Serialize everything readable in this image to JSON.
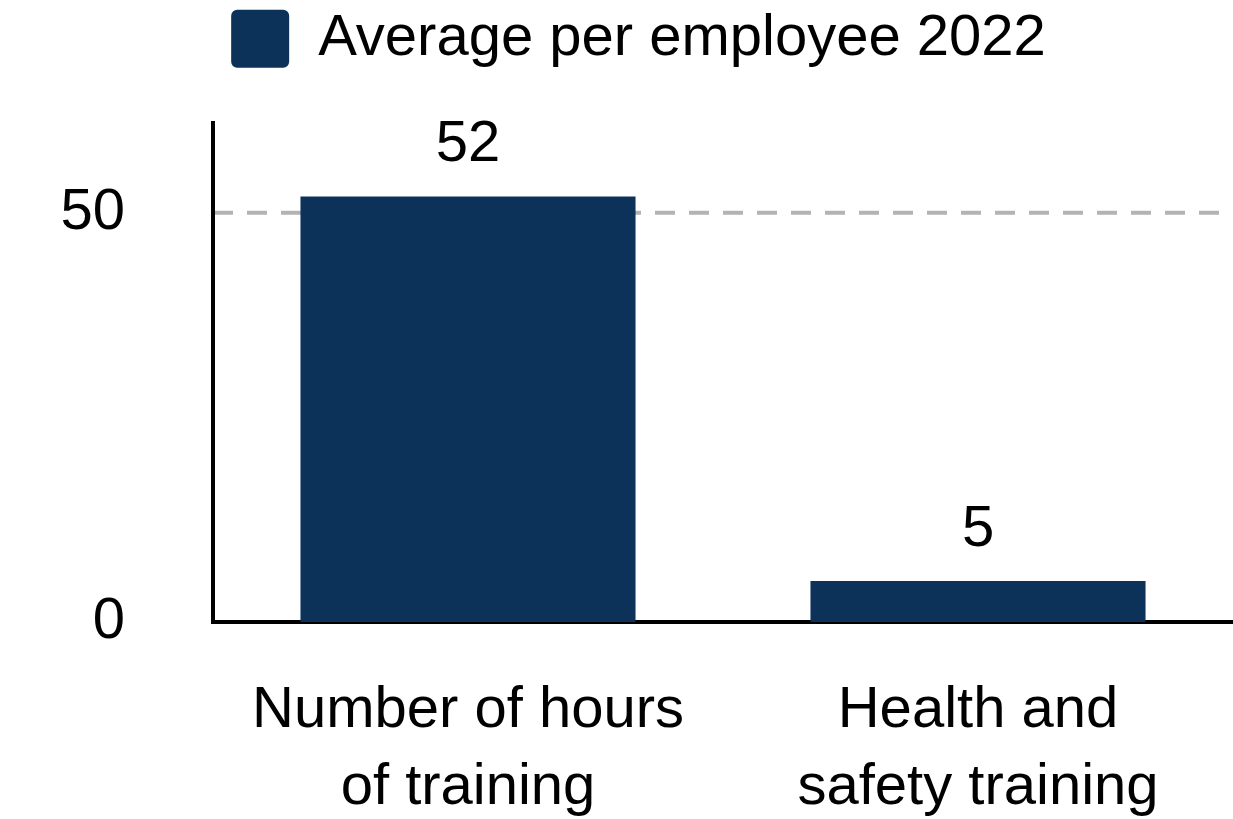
{
  "chart_data": {
    "type": "bar",
    "categories": [
      "Number of hours of training",
      "Health and safety training"
    ],
    "series": [
      {
        "name": "Average per employee 2022",
        "color": "#0c325a",
        "values": [
          52,
          5
        ]
      }
    ],
    "ylim": [
      0,
      61
    ],
    "yticks": [
      0,
      50
    ],
    "grid": "y",
    "legend": "top",
    "data_labels": true
  }
}
